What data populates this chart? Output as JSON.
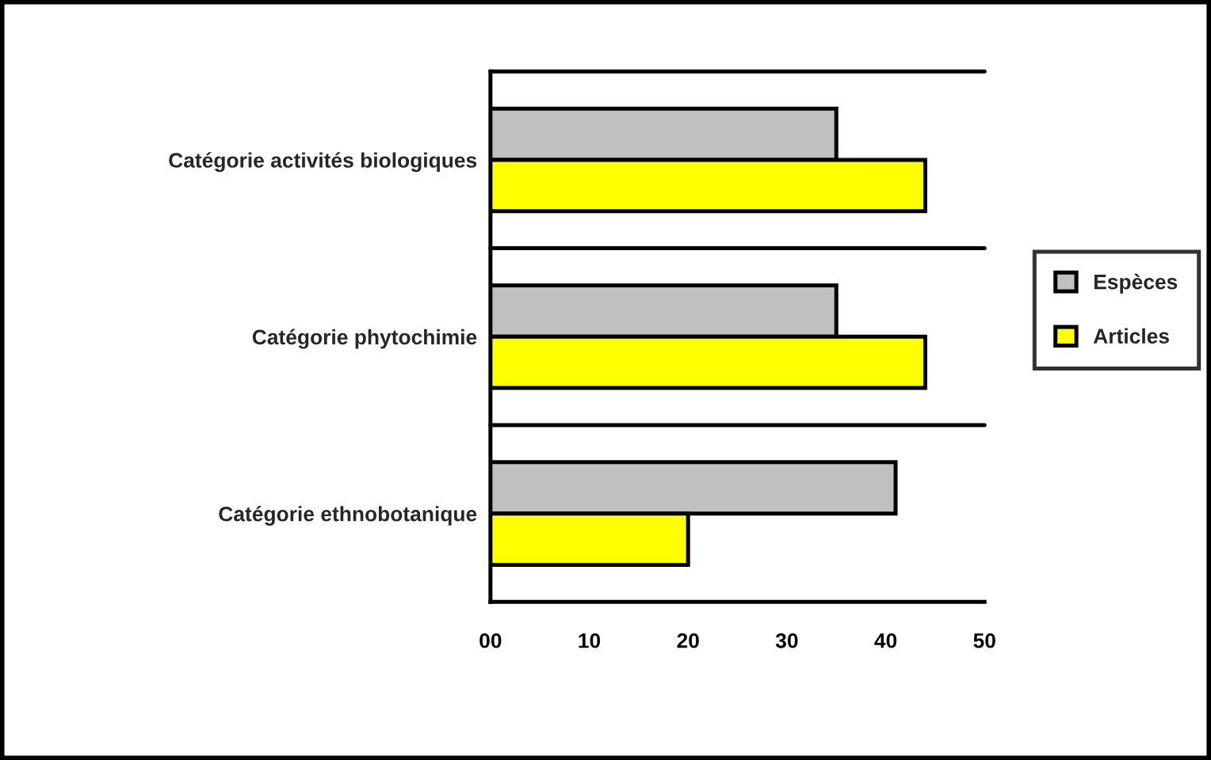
{
  "chart_data": {
    "type": "bar",
    "orientation": "horizontal",
    "categories": [
      "Catégorie activités biologiques",
      "Catégorie phytochimie",
      "Catégorie ethnobotanique"
    ],
    "series": [
      {
        "name": "Espèces",
        "color": "#c0c0c0",
        "values": [
          35,
          35,
          41
        ]
      },
      {
        "name": "Articles",
        "color": "#ffff00",
        "values": [
          44,
          44,
          20
        ]
      }
    ],
    "xlim": [
      0,
      50
    ],
    "xticks": [
      {
        "value": 0,
        "label": "00"
      },
      10,
      20,
      30,
      40,
      50
    ],
    "grid": "y",
    "legend": "right"
  }
}
